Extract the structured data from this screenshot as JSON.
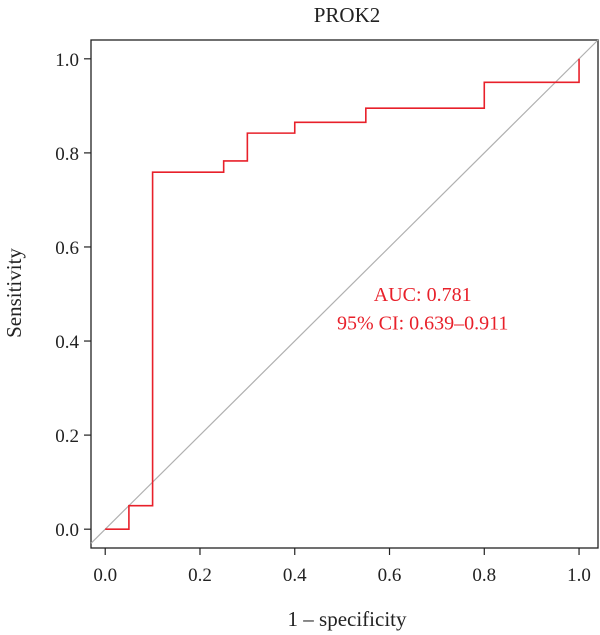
{
  "chart_data": {
    "type": "line",
    "title": "PROK2",
    "xlabel": "1 – specificity",
    "ylabel": "Sensitivity",
    "xlim": [
      -0.03,
      1.04
    ],
    "ylim": [
      -0.04,
      1.04
    ],
    "x_ticks": [
      0.0,
      0.2,
      0.4,
      0.6,
      0.8,
      1.0
    ],
    "y_ticks": [
      0.0,
      0.2,
      0.4,
      0.6,
      0.8,
      1.0
    ],
    "x_tick_labels": [
      "0.0",
      "0.2",
      "0.4",
      "0.6",
      "0.8",
      "1.0"
    ],
    "y_tick_labels": [
      "0.0",
      "0.2",
      "0.4",
      "0.6",
      "0.8",
      "1.0"
    ],
    "grid": false,
    "series": [
      {
        "color": "#e8202a",
        "step": true,
        "x": [
          0.0,
          0.05,
          0.05,
          0.1,
          0.1,
          0.25,
          0.25,
          0.3,
          0.3,
          0.4,
          0.4,
          0.55,
          0.55,
          0.8,
          0.8,
          1.0,
          1.0
        ],
        "y": [
          0.0,
          0.0,
          0.05,
          0.05,
          0.759,
          0.759,
          0.783,
          0.783,
          0.842,
          0.842,
          0.865,
          0.865,
          0.895,
          0.895,
          0.95,
          0.95,
          1.0
        ]
      }
    ],
    "reference_line": {
      "x": [
        0.0,
        1.0
      ],
      "y": [
        0.0,
        1.0
      ],
      "color": "#b0b0b0"
    },
    "annotations": [
      {
        "text": "AUC: 0.781",
        "x": 0.67,
        "y": 0.485,
        "color": "#e8202a"
      },
      {
        "text": "95% CI: 0.639–0.911",
        "x": 0.67,
        "y": 0.425,
        "color": "#e8202a"
      }
    ]
  }
}
